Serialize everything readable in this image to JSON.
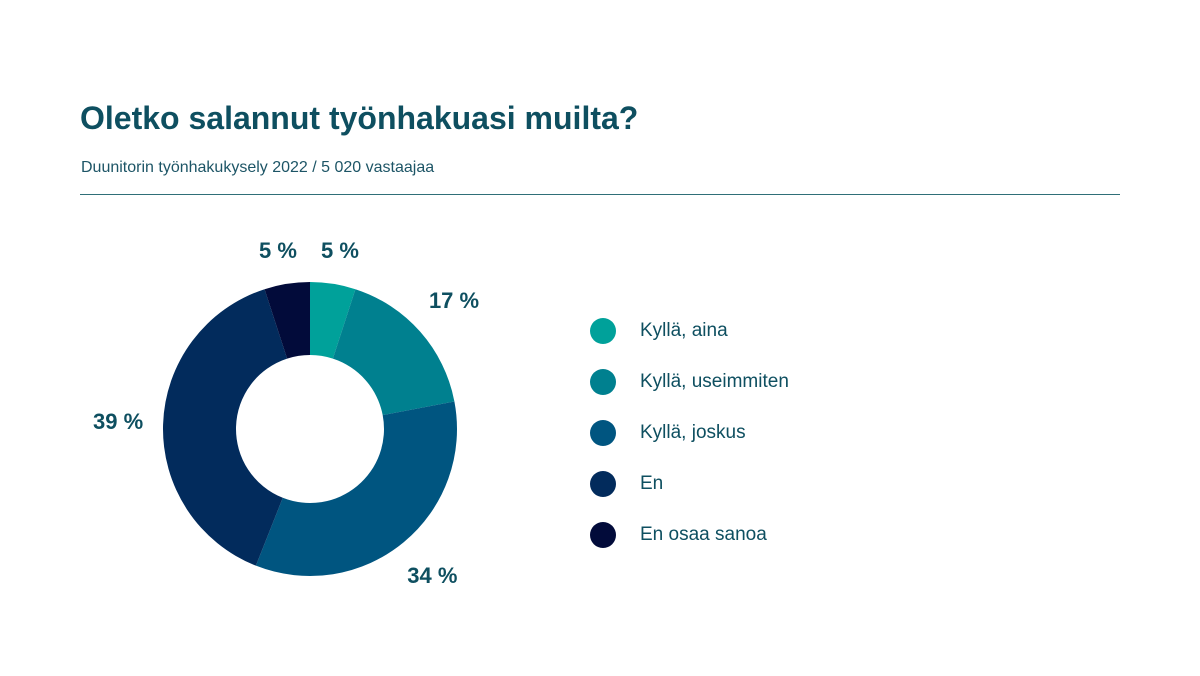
{
  "header": {
    "title": "Oletko salannut työnhakuasi muilta?",
    "subtitle": "Duunitorin työnhakukysely 2022 / 5 020 vastaajaa"
  },
  "chart_data": {
    "type": "pie",
    "style": "donut",
    "title": "Oletko salannut työnhakuasi muilta?",
    "subtitle": "Duunitorin työnhakukysely 2022 / 5 020 vastaajaa",
    "legend_position": "right",
    "unit": "%",
    "slices": [
      {
        "label": "Kyllä, aina",
        "value": 5,
        "value_label": "5 %",
        "color": "#00a19a"
      },
      {
        "label": "Kyllä, useimmiten",
        "value": 17,
        "value_label": "17 %",
        "color": "#00808f"
      },
      {
        "label": "Kyllä, joskus",
        "value": 34,
        "value_label": "34 %",
        "color": "#005580"
      },
      {
        "label": "En",
        "value": 39,
        "value_label": "39 %",
        "color": "#022b5c"
      },
      {
        "label": "En osaa sanoa",
        "value": 5,
        "value_label": "5 %",
        "color": "#020b3a"
      }
    ]
  }
}
